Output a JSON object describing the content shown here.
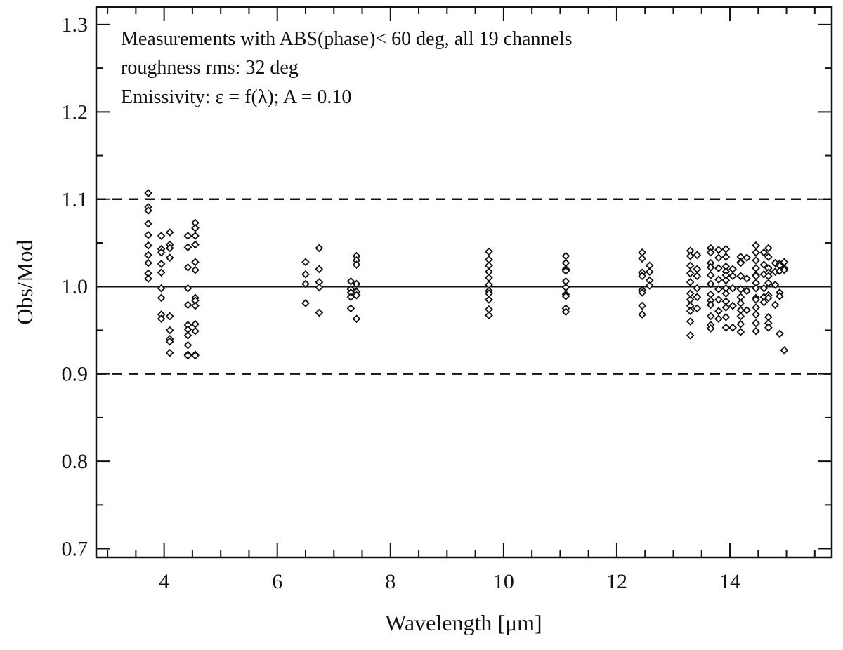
{
  "chart_data": {
    "type": "scatter",
    "title": "",
    "xlabel": "Wavelength [μm]",
    "ylabel": "Obs/Mod",
    "xlim": [
      2.8,
      15.8
    ],
    "ylim": [
      0.69,
      1.32
    ],
    "x_ticks": [
      4,
      6,
      8,
      10,
      12,
      14
    ],
    "x_tick_labels": [
      "4",
      "6",
      "8",
      "10",
      "12",
      "14"
    ],
    "y_ticks": [
      0.7,
      0.8,
      0.9,
      1.0,
      1.1,
      1.2,
      1.3
    ],
    "y_tick_labels": [
      "0.7",
      "0.8",
      "0.9",
      "1.0",
      "1.1",
      "1.2",
      "1.3"
    ],
    "grid": false,
    "legend": "none",
    "marker": "diamond",
    "annotations": [
      "Measurements with ABS(phase)< 60 deg, all 19 channels",
      "roughness rms: 32 deg",
      "Emissivity: ε = f(λ);  A = 0.10"
    ],
    "reference_lines": [
      {
        "y": 1.0,
        "style": "solid"
      },
      {
        "y": 1.1,
        "style": "dashed"
      },
      {
        "y": 0.9,
        "style": "dashed"
      }
    ],
    "series": [
      {
        "x": 3.72,
        "values": [
          1.107,
          1.091,
          1.087,
          1.072,
          1.059,
          1.047,
          1.036,
          1.027,
          1.015,
          1.009
        ]
      },
      {
        "x": 3.95,
        "values": [
          1.058,
          1.043,
          1.039,
          1.026,
          1.016,
          0.998,
          0.987,
          0.968,
          0.963
        ]
      },
      {
        "x": 4.1,
        "values": [
          1.062,
          1.048,
          1.044,
          1.033,
          0.966,
          0.95,
          0.94,
          0.937,
          0.924
        ]
      },
      {
        "x": 4.42,
        "values": [
          1.058,
          1.045,
          1.022,
          0.998,
          0.979,
          0.956,
          0.951,
          0.944,
          0.933,
          0.922,
          0.921
        ]
      },
      {
        "x": 4.55,
        "values": [
          1.073,
          1.067,
          1.058,
          1.048,
          1.028,
          1.019,
          0.987,
          0.984,
          0.978,
          0.957,
          0.949,
          0.922,
          0.921
        ]
      },
      {
        "x": 6.5,
        "values": [
          1.028,
          1.014,
          1.003,
          0.981
        ]
      },
      {
        "x": 6.74,
        "values": [
          1.044,
          1.02,
          1.005,
          0.999,
          0.97
        ]
      },
      {
        "x": 7.3,
        "values": [
          1.006,
          0.997,
          0.993,
          0.988,
          0.975
        ]
      },
      {
        "x": 7.4,
        "values": [
          1.035,
          1.03,
          1.025,
          1.003,
          0.994,
          0.99,
          0.963
        ]
      },
      {
        "x": 9.74,
        "values": [
          1.04,
          1.031,
          1.024,
          1.017,
          1.01,
          1.002,
          0.995,
          0.992,
          0.985,
          0.974,
          0.967
        ]
      },
      {
        "x": 11.1,
        "values": [
          1.035,
          1.027,
          1.02,
          1.018,
          1.006,
          0.999,
          0.991,
          0.989,
          0.975,
          0.971
        ]
      },
      {
        "x": 12.45,
        "values": [
          1.039,
          1.032,
          1.016,
          1.012,
          0.996,
          0.993,
          0.978,
          0.968
        ]
      },
      {
        "x": 12.58,
        "values": [
          1.024,
          1.017,
          1.007,
          1.001
        ]
      },
      {
        "x": 13.3,
        "values": [
          1.041,
          1.035,
          1.024,
          1.015,
          1.005,
          0.992,
          0.985,
          0.978,
          0.972,
          0.96,
          0.944
        ]
      },
      {
        "x": 13.42,
        "values": [
          1.036,
          1.02,
          1.012,
          0.998,
          0.988,
          0.975
        ]
      },
      {
        "x": 13.66,
        "values": [
          1.044,
          1.039,
          1.027,
          1.022,
          1.013,
          1.003,
          0.991,
          0.984,
          0.979,
          0.966,
          0.956,
          0.952
        ]
      },
      {
        "x": 13.8,
        "values": [
          1.042,
          1.033,
          1.021,
          1.008,
          0.997,
          0.985,
          0.972,
          0.963
        ]
      },
      {
        "x": 13.93,
        "values": [
          1.043,
          1.034,
          1.023,
          1.017,
          1.013,
          1.007,
          0.998,
          0.992,
          0.983,
          0.976,
          0.965,
          0.953
        ]
      },
      {
        "x": 14.05,
        "values": [
          1.02,
          1.012,
          0.998,
          0.978,
          0.953
        ]
      },
      {
        "x": 14.19,
        "values": [
          1.034,
          1.028,
          1.027,
          1.012,
          0.997,
          0.988,
          0.981,
          0.973,
          0.966,
          0.957,
          0.948
        ]
      },
      {
        "x": 14.3,
        "values": [
          1.033,
          1.009,
          0.995,
          0.973
        ]
      },
      {
        "x": 14.46,
        "values": [
          1.047,
          1.039,
          1.03,
          1.021,
          1.013,
          1.012,
          1.004,
          0.998,
          0.987,
          0.985,
          0.976,
          0.968,
          0.958,
          0.949
        ]
      },
      {
        "x": 14.6,
        "values": [
          1.039,
          1.025,
          1.014,
          0.998,
          0.988,
          0.982
        ]
      },
      {
        "x": 14.68,
        "values": [
          1.044,
          1.034,
          1.021,
          1.016,
          1.012,
          1.004,
          0.99,
          0.987,
          0.965,
          0.958,
          0.953
        ]
      },
      {
        "x": 14.8,
        "values": [
          1.027,
          1.017,
          1.002,
          0.979
        ]
      },
      {
        "x": 14.88,
        "values": [
          1.026,
          1.024,
          1.018,
          0.993,
          0.989,
          0.946
        ]
      },
      {
        "x": 14.96,
        "values": [
          1.028,
          1.021,
          1.019,
          0.927
        ]
      }
    ]
  }
}
